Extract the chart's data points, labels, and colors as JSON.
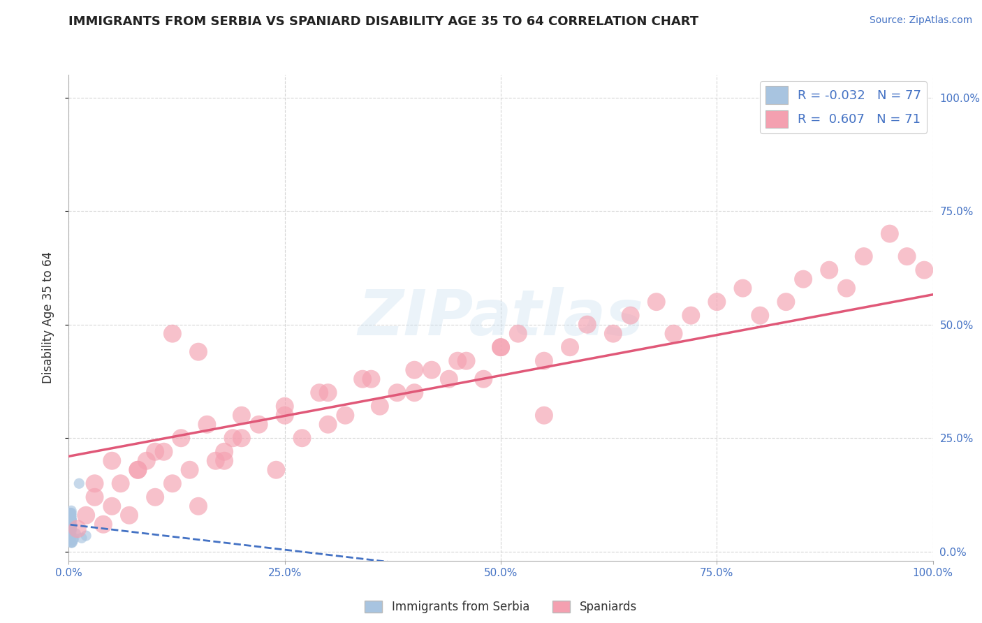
{
  "title": "IMMIGRANTS FROM SERBIA VS SPANIARD DISABILITY AGE 35 TO 64 CORRELATION CHART",
  "source_text": "Source: ZipAtlas.com",
  "ylabel": "Disability Age 35 to 64",
  "xlim": [
    0.0,
    1.0
  ],
  "ylim": [
    -0.02,
    1.05
  ],
  "xtick_labels": [
    "0.0%",
    "25.0%",
    "50.0%",
    "75.0%",
    "100.0%"
  ],
  "xtick_vals": [
    0.0,
    0.25,
    0.5,
    0.75,
    1.0
  ],
  "ytick_labels": [
    "0.0%",
    "25.0%",
    "50.0%",
    "75.0%",
    "100.0%"
  ],
  "ytick_vals": [
    0.0,
    0.25,
    0.5,
    0.75,
    1.0
  ],
  "grid_color": "#cccccc",
  "background_color": "#ffffff",
  "title_fontsize": 13,
  "watermark_text": "ZIPatlas",
  "serbia_color": "#a8c4e0",
  "spain_color": "#f4a0b0",
  "serbia_line_color": "#4472c4",
  "spain_line_color": "#e05878",
  "serbia_R": -0.032,
  "serbia_N": 77,
  "spain_R": 0.607,
  "spain_N": 71,
  "serbia_scatter_x": [
    0.001,
    0.002,
    0.001,
    0.003,
    0.002,
    0.001,
    0.002,
    0.003,
    0.001,
    0.002,
    0.003,
    0.001,
    0.002,
    0.001,
    0.003,
    0.002,
    0.001,
    0.002,
    0.003,
    0.001,
    0.002,
    0.001,
    0.003,
    0.002,
    0.001,
    0.003,
    0.002,
    0.001,
    0.002,
    0.003,
    0.001,
    0.002,
    0.001,
    0.003,
    0.002,
    0.001,
    0.002,
    0.003,
    0.001,
    0.002,
    0.001,
    0.003,
    0.002,
    0.001,
    0.003,
    0.002,
    0.001,
    0.002,
    0.001,
    0.003,
    0.002,
    0.001,
    0.002,
    0.003,
    0.001,
    0.002,
    0.003,
    0.001,
    0.002,
    0.001,
    0.002,
    0.003,
    0.001,
    0.002,
    0.003,
    0.001,
    0.002,
    0.001,
    0.003,
    0.015,
    0.02,
    0.008,
    0.005,
    0.012,
    0.003,
    0.004,
    0.006
  ],
  "serbia_scatter_y": [
    0.055,
    0.06,
    0.065,
    0.07,
    0.05,
    0.045,
    0.08,
    0.055,
    0.06,
    0.065,
    0.07,
    0.075,
    0.08,
    0.085,
    0.05,
    0.055,
    0.06,
    0.065,
    0.045,
    0.07,
    0.075,
    0.08,
    0.05,
    0.055,
    0.06,
    0.065,
    0.07,
    0.075,
    0.08,
    0.085,
    0.055,
    0.06,
    0.065,
    0.07,
    0.045,
    0.05,
    0.055,
    0.06,
    0.065,
    0.07,
    0.075,
    0.08,
    0.085,
    0.055,
    0.06,
    0.065,
    0.07,
    0.045,
    0.05,
    0.055,
    0.06,
    0.065,
    0.07,
    0.075,
    0.08,
    0.085,
    0.055,
    0.06,
    0.065,
    0.07,
    0.03,
    0.035,
    0.04,
    0.025,
    0.02,
    0.03,
    0.035,
    0.025,
    0.02,
    0.03,
    0.035,
    0.04,
    0.025,
    0.15,
    0.09,
    0.02,
    0.03
  ],
  "spain_scatter_x": [
    0.01,
    0.02,
    0.03,
    0.04,
    0.05,
    0.06,
    0.07,
    0.08,
    0.09,
    0.1,
    0.11,
    0.12,
    0.13,
    0.14,
    0.15,
    0.16,
    0.17,
    0.18,
    0.19,
    0.2,
    0.22,
    0.24,
    0.25,
    0.27,
    0.29,
    0.3,
    0.32,
    0.34,
    0.36,
    0.38,
    0.4,
    0.42,
    0.44,
    0.46,
    0.48,
    0.5,
    0.52,
    0.55,
    0.58,
    0.6,
    0.63,
    0.65,
    0.68,
    0.7,
    0.72,
    0.75,
    0.78,
    0.8,
    0.83,
    0.85,
    0.88,
    0.9,
    0.92,
    0.95,
    0.97,
    0.99,
    0.03,
    0.05,
    0.08,
    0.1,
    0.12,
    0.15,
    0.18,
    0.2,
    0.25,
    0.3,
    0.35,
    0.4,
    0.45,
    0.5,
    0.55
  ],
  "spain_scatter_y": [
    0.05,
    0.08,
    0.12,
    0.06,
    0.1,
    0.15,
    0.08,
    0.18,
    0.2,
    0.12,
    0.22,
    0.15,
    0.25,
    0.18,
    0.1,
    0.28,
    0.2,
    0.22,
    0.25,
    0.3,
    0.28,
    0.18,
    0.32,
    0.25,
    0.35,
    0.28,
    0.3,
    0.38,
    0.32,
    0.35,
    0.35,
    0.4,
    0.38,
    0.42,
    0.38,
    0.45,
    0.48,
    0.42,
    0.45,
    0.5,
    0.48,
    0.52,
    0.55,
    0.48,
    0.52,
    0.55,
    0.58,
    0.52,
    0.55,
    0.6,
    0.62,
    0.58,
    0.65,
    0.7,
    0.65,
    0.62,
    0.15,
    0.2,
    0.18,
    0.22,
    0.48,
    0.44,
    0.2,
    0.25,
    0.3,
    0.35,
    0.38,
    0.4,
    0.42,
    0.45,
    0.3
  ],
  "legend_label_serbia": "Immigrants from Serbia",
  "legend_label_spain": "Spaniards"
}
